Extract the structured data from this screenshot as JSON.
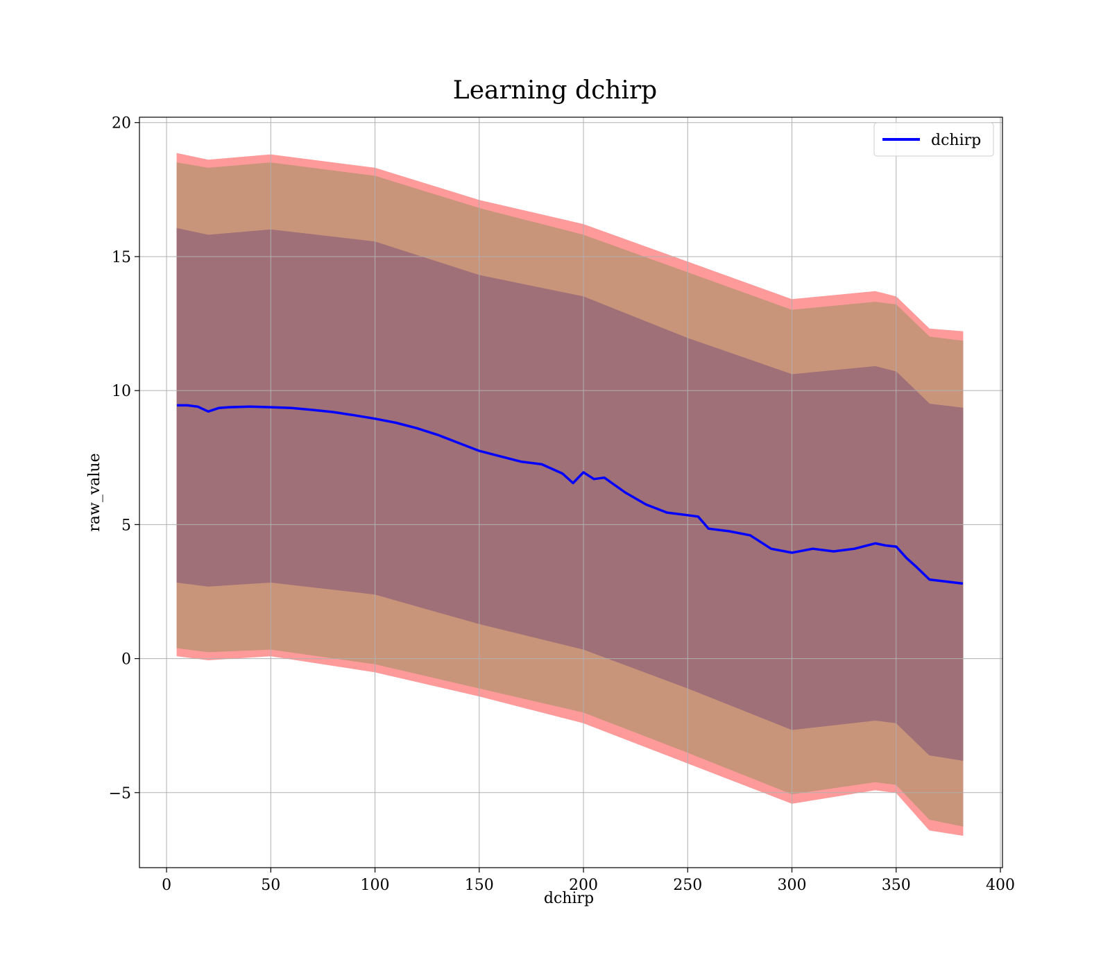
{
  "chart_data": {
    "type": "area",
    "title": "Learning dchirp",
    "xlabel": "dchirp",
    "ylabel": "raw_value",
    "xlim": [
      -13,
      401
    ],
    "ylim": [
      -7.8,
      20.2
    ],
    "xticks": [
      0,
      50,
      100,
      150,
      200,
      250,
      300,
      350,
      400
    ],
    "yticks": [
      -5,
      0,
      5,
      10,
      15,
      20
    ],
    "ytick_labels": [
      "−5",
      "0",
      "5",
      "10",
      "15",
      "20"
    ],
    "grid": true,
    "legend_position": "top-right",
    "colors": {
      "line": "#0000ff",
      "band_outer": "#ff9a9a",
      "band_middle": "#c8947a",
      "band_inner": "#a07078"
    },
    "series": [
      {
        "name": "dchirp",
        "x": [
          5,
          10,
          15,
          20,
          25,
          30,
          40,
          50,
          60,
          70,
          80,
          90,
          100,
          110,
          120,
          130,
          140,
          150,
          160,
          170,
          180,
          190,
          195,
          200,
          205,
          210,
          220,
          230,
          240,
          250,
          255,
          260,
          270,
          280,
          290,
          300,
          310,
          320,
          330,
          340,
          345,
          350,
          355,
          360,
          366,
          382
        ],
        "y": [
          9.45,
          9.45,
          9.4,
          9.22,
          9.35,
          9.38,
          9.4,
          9.38,
          9.35,
          9.28,
          9.2,
          9.08,
          8.95,
          8.8,
          8.6,
          8.35,
          8.05,
          7.75,
          7.55,
          7.35,
          7.25,
          6.9,
          6.55,
          6.95,
          6.7,
          6.75,
          6.2,
          5.75,
          5.45,
          5.35,
          5.3,
          4.85,
          4.75,
          4.6,
          4.1,
          3.95,
          4.1,
          4.0,
          4.1,
          4.3,
          4.22,
          4.18,
          3.75,
          3.4,
          2.95,
          2.8
        ]
      }
    ],
    "bands": [
      {
        "x": [
          5,
          20,
          50,
          100,
          150,
          200,
          250,
          300,
          340,
          350,
          366,
          382
        ],
        "upper": [
          18.85,
          18.6,
          18.8,
          18.3,
          17.1,
          16.2,
          14.8,
          13.4,
          13.7,
          13.5,
          12.3,
          12.2
        ],
        "lower": [
          0.1,
          -0.05,
          0.1,
          -0.5,
          -1.4,
          -2.4,
          -3.9,
          -5.4,
          -4.9,
          -5.0,
          -6.4,
          -6.6
        ]
      },
      {
        "x": [
          5,
          20,
          50,
          100,
          150,
          200,
          250,
          300,
          340,
          350,
          366,
          382
        ],
        "upper": [
          18.5,
          18.3,
          18.5,
          18.0,
          16.8,
          15.8,
          14.4,
          13.0,
          13.3,
          13.2,
          12.0,
          11.85
        ],
        "lower": [
          0.4,
          0.25,
          0.35,
          -0.2,
          -1.1,
          -2.0,
          -3.5,
          -5.05,
          -4.6,
          -4.7,
          -6.0,
          -6.25
        ]
      },
      {
        "x": [
          5,
          20,
          50,
          100,
          150,
          200,
          250,
          300,
          340,
          350,
          366,
          382
        ],
        "upper": [
          16.05,
          15.8,
          16.0,
          15.55,
          14.3,
          13.5,
          11.95,
          10.6,
          10.9,
          10.7,
          9.5,
          9.35
        ],
        "lower": [
          2.85,
          2.7,
          2.85,
          2.4,
          1.3,
          0.35,
          -1.1,
          -2.65,
          -2.3,
          -2.4,
          -3.6,
          -3.8
        ]
      }
    ]
  }
}
